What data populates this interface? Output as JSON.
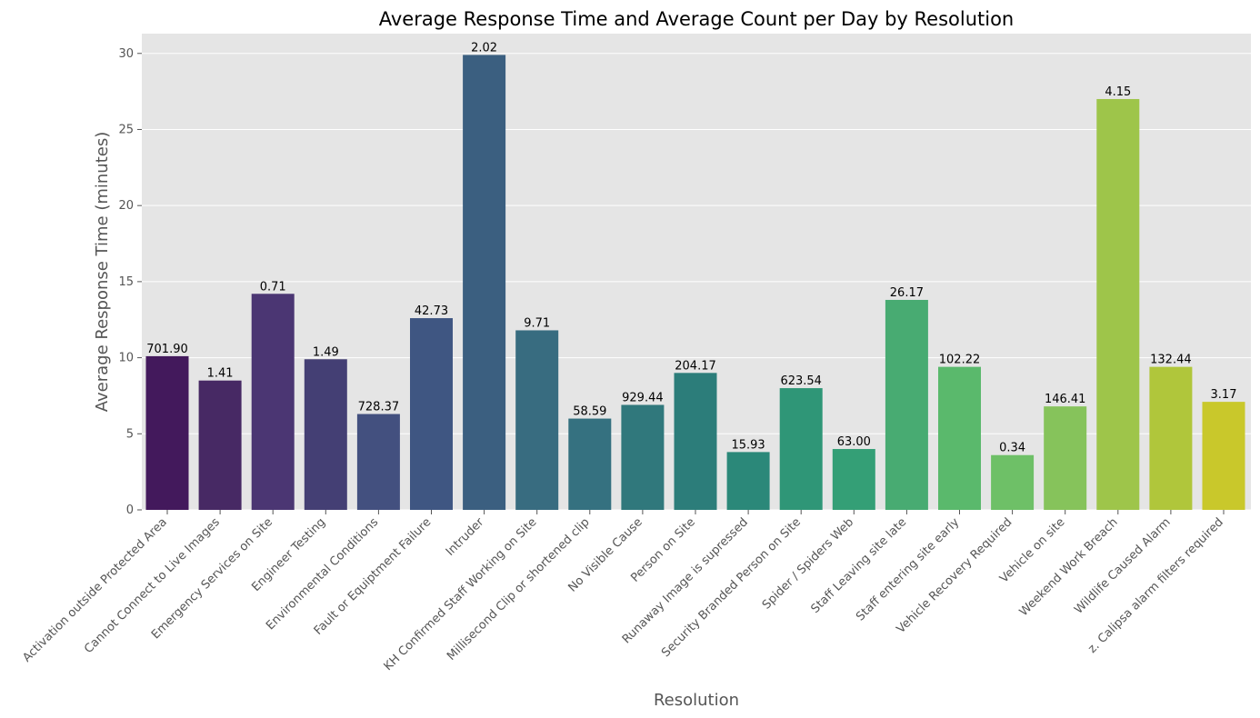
{
  "chart_data": {
    "type": "bar",
    "title": "Average Response Time and Average Count per Day by Resolution",
    "xlabel": "Resolution",
    "ylabel": "Average Response Time (minutes)",
    "ylim": [
      0,
      31.3
    ],
    "yticks": [
      0,
      5,
      10,
      15,
      20,
      25,
      30
    ],
    "grid": true,
    "categories": [
      "Activation outside Protected Area",
      "Cannot Connect to Live Images",
      "Emergency Services on Site",
      "Engineer Testing",
      "Environmental Conditions",
      "Fault or Equiptment Failure",
      "Intruder",
      "KH Confirmed Staff Working on Site",
      "Millisecond Clip or shortened clip",
      "No Visible Cause",
      "Person on Site",
      "Runaway Image is supressed",
      "Security Branded Person on Site",
      "Spider / Spiders Web",
      "Staff Leaving site late",
      "Staff entering site early",
      "Vehicle Recovery Required",
      "Vehicle on site",
      "Weekend Work Breach",
      "Wildlife Caused Alarm",
      "z. Calipsa alarm filters required"
    ],
    "values": [
      10.1,
      8.5,
      14.2,
      9.9,
      6.3,
      12.6,
      29.9,
      11.8,
      6.0,
      6.9,
      9.0,
      3.8,
      8.0,
      4.0,
      13.8,
      9.4,
      3.6,
      6.8,
      27.0,
      9.4,
      7.1
    ],
    "bar_labels": [
      "701.90",
      "1.41",
      "0.71",
      "1.49",
      "728.37",
      "42.73",
      "2.02",
      "9.71",
      "58.59",
      "929.44",
      "204.17",
      "15.93",
      "623.54",
      "63.00",
      "26.17",
      "102.22",
      "0.34",
      "146.41",
      "4.15",
      "132.44",
      "3.17"
    ],
    "colors": [
      "#43195c",
      "#472964",
      "#4b3673",
      "#443f74",
      "#43507f",
      "#3f5682",
      "#3b5f80",
      "#386c80",
      "#357180",
      "#30787c",
      "#2c7d7a",
      "#2b8879",
      "#2f9677",
      "#349f76",
      "#48ab72",
      "#5ab96c",
      "#6ec067",
      "#86c35b",
      "#9ec54a",
      "#b0c63b",
      "#c9c82b"
    ],
    "style": {
      "background": "#ffffff",
      "plot_background": "#e5e5e5",
      "grid_color": "#ffffff",
      "text_color": "#000000",
      "label_color": "#555555"
    }
  }
}
